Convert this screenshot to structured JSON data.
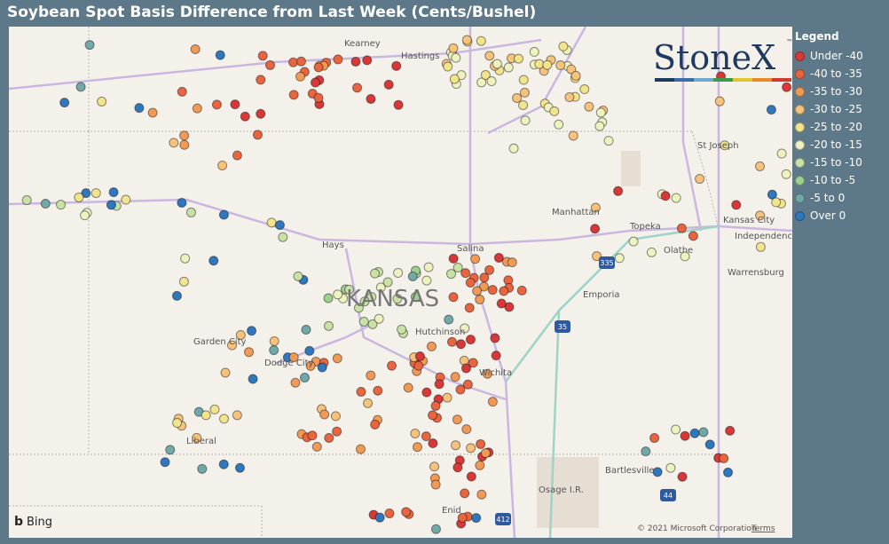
{
  "header": {
    "title": "Soybean Spot Basis Difference from Last Week (Cents/Bushel)"
  },
  "legend": {
    "title": "Legend",
    "items": [
      {
        "label": "Under -40",
        "color": "#d93838"
      },
      {
        "label": "-40 to -35",
        "color": "#e8653f"
      },
      {
        "label": "-35 to -30",
        "color": "#f09a55"
      },
      {
        "label": "-30 to -25",
        "color": "#f6c27c"
      },
      {
        "label": "-25 to -20",
        "color": "#f2e48c"
      },
      {
        "label": "-20 to -15",
        "color": "#eef2bf"
      },
      {
        "label": "-15 to -10",
        "color": "#c8e2a5"
      },
      {
        "label": "-10 to -5",
        "color": "#9dcf8f"
      },
      {
        "label": "-5 to 0",
        "color": "#70a9a8"
      },
      {
        "label": "Over 0",
        "color": "#2f78bd"
      }
    ]
  },
  "logo": {
    "text": "StoneX",
    "mark": "™"
  },
  "map": {
    "labels": [
      "Kearney",
      "Hastings",
      "St Joseph",
      "Manhattan",
      "Kansas City",
      "Independence",
      "Topeka",
      "Olathe",
      "Salina",
      "Hays",
      "KANSAS",
      "Emporia",
      "Warrensburg",
      "Hutchinson",
      "Garden City",
      "Dodge City",
      "Wichita",
      "Liberal",
      "Bartlesville",
      "Osage I.R.",
      "Enid"
    ],
    "shields": [
      "335",
      "35",
      "44",
      "412"
    ],
    "attribution": "© 2021 Microsoft Corporation",
    "terms": "Terms",
    "provider": "Bing"
  }
}
